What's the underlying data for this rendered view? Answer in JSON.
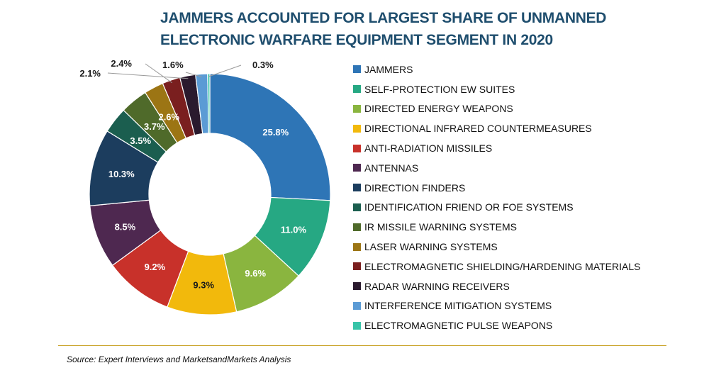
{
  "chart_data": {
    "type": "pie",
    "title": "JAMMERS ACCOUNTED FOR LARGEST SHARE OF UNMANNED ELECTRONIC WARFARE EQUIPMENT SEGMENT IN 2020",
    "donut": true,
    "legend_position": "right",
    "unit": "%",
    "slices": [
      {
        "label": "JAMMERS",
        "value": 25.8,
        "value_label": "25.8%",
        "color": "#2e75b6"
      },
      {
        "label": "SELF-PROTECTION EW SUITES",
        "value": 11.0,
        "value_label": "11.0%",
        "color": "#26a883"
      },
      {
        "label": "DIRECTED ENERGY WEAPONS",
        "value": 9.6,
        "value_label": "9.6%",
        "color": "#8ab53f"
      },
      {
        "label": "DIRECTIONAL INFRARED COUNTERMEASURES",
        "value": 9.3,
        "value_label": "9.3%",
        "color": "#f2b90c"
      },
      {
        "label": "ANTI-RADIATION MISSILES",
        "value": 9.2,
        "value_label": "9.2%",
        "color": "#c8312a"
      },
      {
        "label": "ANTENNAS",
        "value": 8.5,
        "value_label": "8.5%",
        "color": "#4e2850"
      },
      {
        "label": "DIRECTION FINDERS",
        "value": 10.3,
        "value_label": "10.3%",
        "color": "#1c3d5e"
      },
      {
        "label": "IDENTIFICATION FRIEND OR FOE SYSTEMS",
        "value": 3.5,
        "value_label": "3.5%",
        "color": "#1b5e4f"
      },
      {
        "label": "IR MISSILE WARNING SYSTEMS",
        "value": 3.7,
        "value_label": "3.7%",
        "color": "#4f6a2a"
      },
      {
        "label": "LASER WARNING SYSTEMS",
        "value": 2.6,
        "value_label": "2.6%",
        "color": "#9c7514"
      },
      {
        "label": "ELECTROMAGNETIC SHIELDING/HARDENING MATERIALS",
        "value": 2.4,
        "value_label": "2.4%",
        "color": "#7a1f1f"
      },
      {
        "label": "RADAR WARNING RECEIVERS",
        "value": 2.1,
        "value_label": "2.1%",
        "color": "#2a1a2e"
      },
      {
        "label": "INTERFERENCE MITIGATION SYSTEMS",
        "value": 1.6,
        "value_label": "1.6%",
        "color": "#5b9bd5"
      },
      {
        "label": "ELECTROMAGNETIC PULSE WEAPONS",
        "value": 0.3,
        "value_label": "0.3%",
        "color": "#37c4a8"
      }
    ]
  },
  "source": "Source: Expert Interviews and MarketsandMarkets Analysis"
}
